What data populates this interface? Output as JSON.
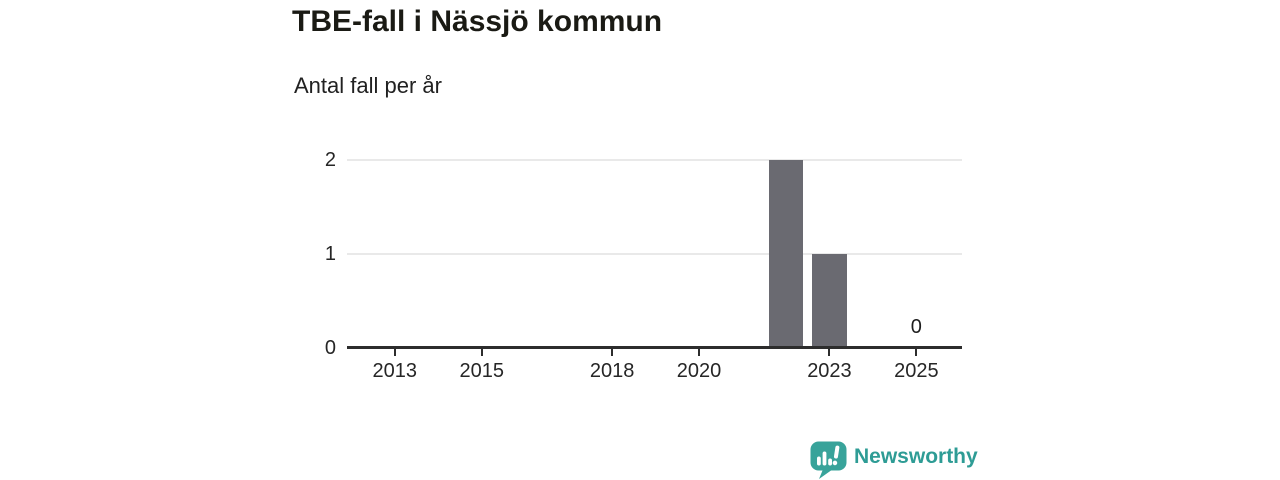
{
  "header": {
    "title": "TBE-fall i Nässjö kommun",
    "subtitle": "Antal fall per år"
  },
  "chart_data": {
    "type": "bar",
    "title": "TBE-fall i Nässjö kommun",
    "subtitle": "Antal fall per år",
    "points": [
      {
        "year": 2022,
        "value": 2
      },
      {
        "year": 2023,
        "value": 1
      },
      {
        "year": 2025,
        "value": 0,
        "label": "0"
      }
    ],
    "xticks": [
      2013,
      2015,
      2018,
      2020,
      2023,
      2025
    ],
    "yticks": [
      0,
      1,
      2
    ],
    "xlim": [
      2011.9,
      2026.05
    ],
    "ylim": [
      0,
      2
    ],
    "grid": "horizontal-light",
    "legend": "none",
    "bar_color": "#6a6a71",
    "axis_color": "#2d2d2d",
    "gridline_color": "#e9e9e9"
  },
  "footer": {
    "brand": "Newsworthy",
    "brand_color": "#2e9c95",
    "logo_icon": "newsworthy-speech-bubble-bar-chart-icon"
  }
}
